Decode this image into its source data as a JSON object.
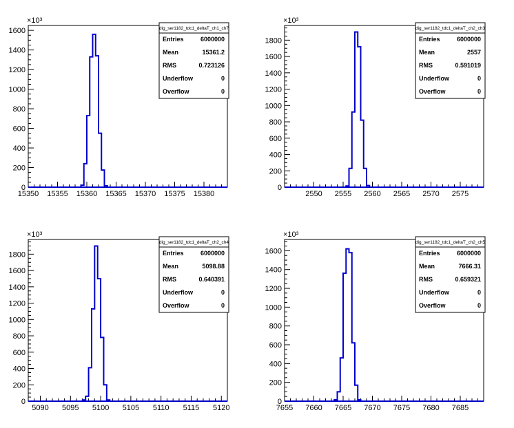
{
  "colors": {
    "histogram": "#0000cc",
    "frame": "#000000",
    "background": "#ffffff"
  },
  "chart_data": [
    {
      "type": "histogram",
      "name": "dig_ser1182_tdc1_deltaT_ch1_ch7",
      "stats": {
        "Entries": "6000000",
        "Mean": "15361.2",
        "RMS": "0.723126",
        "Underflow": "0",
        "Overflow": "0"
      },
      "y_exponent": "×10³",
      "xlim": [
        15350,
        15384
      ],
      "ylim": [
        0,
        1650
      ],
      "x_ticks": [
        15350,
        15355,
        15360,
        15365,
        15370,
        15375,
        15380
      ],
      "y_ticks": [
        0,
        200,
        400,
        600,
        800,
        1000,
        1200,
        1400,
        1600
      ],
      "bin_width": 0.5,
      "bins": [
        [
          15357.0,
          0
        ],
        [
          15357.5,
          0
        ],
        [
          15358.0,
          0
        ],
        [
          15358.5,
          0
        ],
        [
          15359.0,
          20
        ],
        [
          15359.5,
          240
        ],
        [
          15360.0,
          730
        ],
        [
          15360.5,
          1330
        ],
        [
          15361.0,
          1560
        ],
        [
          15361.5,
          1340
        ],
        [
          15362.0,
          550
        ],
        [
          15362.5,
          175
        ],
        [
          15363.0,
          15
        ],
        [
          15363.5,
          0
        ],
        [
          15364.0,
          0
        ]
      ]
    },
    {
      "type": "histogram",
      "name": "dig_ser1182_tdc1_deltaT_ch2_ch3",
      "stats": {
        "Entries": "6000000",
        "Mean": "2557",
        "RMS": "0.591019",
        "Underflow": "0",
        "Overflow": "0"
      },
      "y_exponent": "×10³",
      "xlim": [
        2545,
        2579
      ],
      "ylim": [
        0,
        1980
      ],
      "x_ticks": [
        2550,
        2555,
        2560,
        2565,
        2570,
        2575
      ],
      "y_ticks": [
        0,
        200,
        400,
        600,
        800,
        1000,
        1200,
        1400,
        1600,
        1800
      ],
      "bin_width": 0.5,
      "bins": [
        [
          2553.5,
          0
        ],
        [
          2554.0,
          0
        ],
        [
          2554.5,
          0
        ],
        [
          2555.0,
          0
        ],
        [
          2555.5,
          15
        ],
        [
          2556.0,
          230
        ],
        [
          2556.5,
          920
        ],
        [
          2557.0,
          1900
        ],
        [
          2557.5,
          1720
        ],
        [
          2558.0,
          820
        ],
        [
          2558.5,
          230
        ],
        [
          2559.0,
          20
        ],
        [
          2559.5,
          0
        ],
        [
          2560.0,
          0
        ]
      ]
    },
    {
      "type": "histogram",
      "name": "dig_ser1182_tdc1_deltaT_ch2_ch4",
      "stats": {
        "Entries": "6000000",
        "Mean": "5098.88",
        "RMS": "0.640391",
        "Underflow": "0",
        "Overflow": "0"
      },
      "y_exponent": "×10³",
      "xlim": [
        5088,
        5121
      ],
      "ylim": [
        0,
        1980
      ],
      "x_ticks": [
        5090,
        5095,
        5100,
        5105,
        5110,
        5115,
        5120
      ],
      "y_ticks": [
        0,
        200,
        400,
        600,
        800,
        1000,
        1200,
        1400,
        1600,
        1800
      ],
      "bin_width": 0.5,
      "bins": [
        [
          5095.5,
          0
        ],
        [
          5096.0,
          0
        ],
        [
          5096.5,
          0
        ],
        [
          5097.0,
          15
        ],
        [
          5097.5,
          60
        ],
        [
          5098.0,
          410
        ],
        [
          5098.5,
          1130
        ],
        [
          5099.0,
          1900
        ],
        [
          5099.5,
          1500
        ],
        [
          5100.0,
          780
        ],
        [
          5100.5,
          200
        ],
        [
          5101.0,
          15
        ],
        [
          5101.5,
          0
        ],
        [
          5102.0,
          0
        ]
      ]
    },
    {
      "type": "histogram",
      "name": "dig_ser1182_tdc1_deltaT_ch2_ch5",
      "stats": {
        "Entries": "6000000",
        "Mean": "7666.31",
        "RMS": "0.659321",
        "Underflow": "0",
        "Overflow": "0"
      },
      "y_exponent": "×10³",
      "xlim": [
        7655,
        7689
      ],
      "ylim": [
        0,
        1720
      ],
      "x_ticks": [
        7655,
        7660,
        7665,
        7670,
        7675,
        7680,
        7685
      ],
      "y_ticks": [
        0,
        200,
        400,
        600,
        800,
        1000,
        1200,
        1400,
        1600
      ],
      "bin_width": 0.5,
      "bins": [
        [
          7662.0,
          0
        ],
        [
          7662.5,
          0
        ],
        [
          7663.0,
          0
        ],
        [
          7663.5,
          15
        ],
        [
          7664.0,
          100
        ],
        [
          7664.5,
          460
        ],
        [
          7665.0,
          1360
        ],
        [
          7665.5,
          1620
        ],
        [
          7666.0,
          1580
        ],
        [
          7666.5,
          620
        ],
        [
          7667.0,
          170
        ],
        [
          7667.5,
          15
        ],
        [
          7668.0,
          0
        ],
        [
          7668.5,
          0
        ]
      ]
    }
  ]
}
